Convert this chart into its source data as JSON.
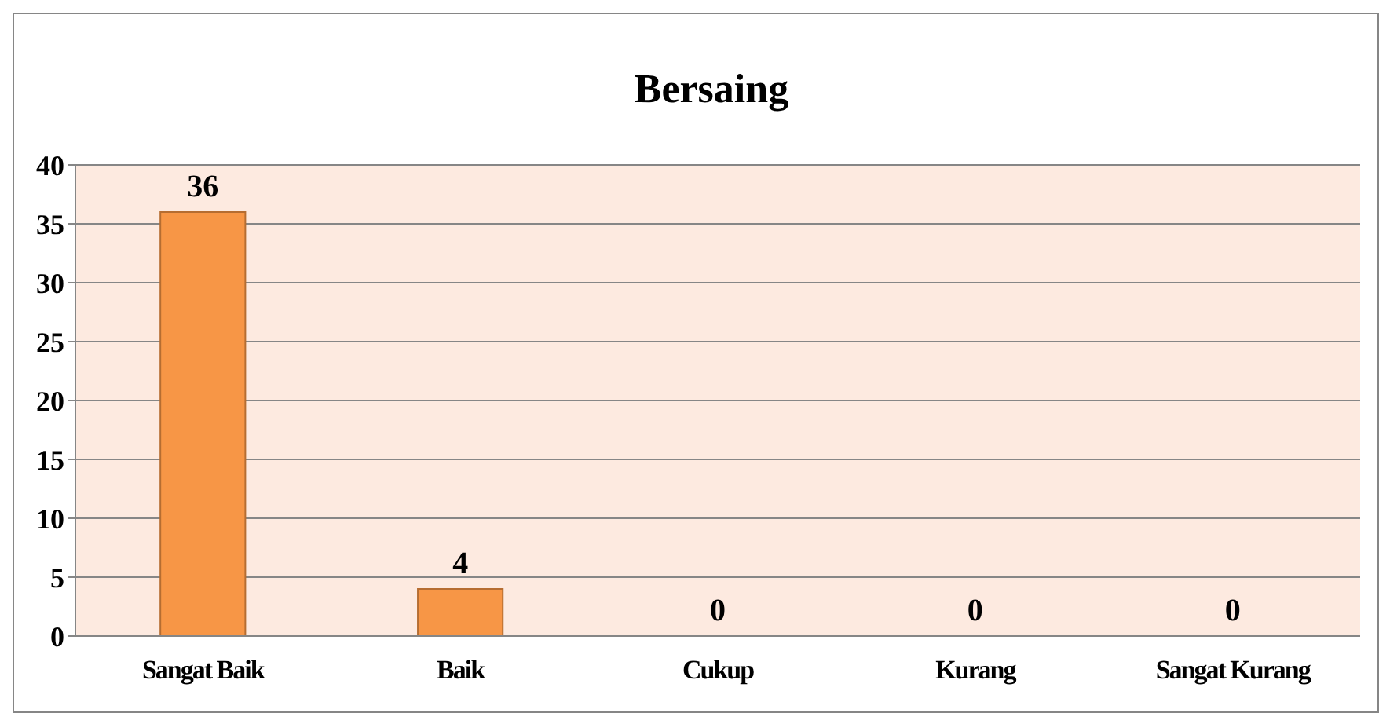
{
  "chart_data": {
    "type": "bar",
    "title": "Bersaing",
    "categories": [
      "Sangat Baik",
      "Baik",
      "Cukup",
      "Kurang",
      "Sangat Kurang"
    ],
    "values": [
      36,
      4,
      0,
      0,
      0
    ],
    "color": "#f79646",
    "ylim": [
      0,
      40
    ],
    "yticks": [
      0,
      5,
      10,
      15,
      20,
      25,
      30,
      35,
      40
    ],
    "grid": "y",
    "data_labels": true
  }
}
